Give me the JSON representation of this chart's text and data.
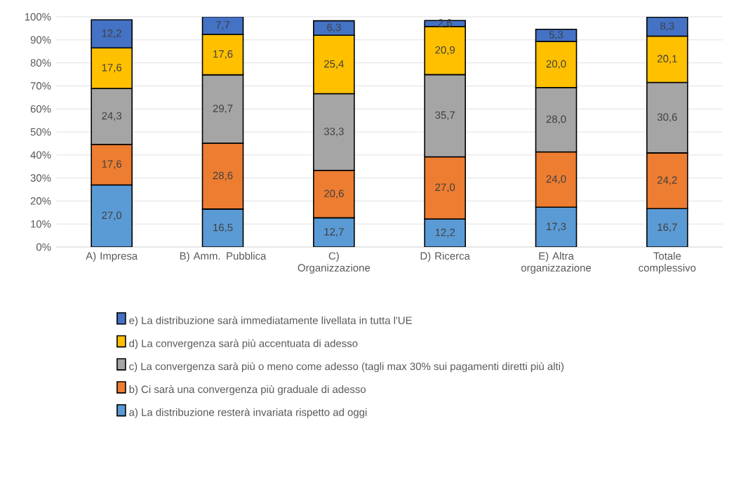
{
  "chart_data": {
    "type": "bar",
    "stacked": true,
    "categories": [
      "A) Impresa",
      "B) Amm. Pubblica",
      "C) Organizzazione",
      "D) Ricerca",
      "E) Altra organizzazione",
      "Totale complessivo"
    ],
    "series": [
      {
        "name": "a) La distribuzione resterà invariata rispetto ad oggi",
        "color": "#5b9bd5",
        "values": [
          27.0,
          16.5,
          12.7,
          12.2,
          17.3,
          16.7
        ],
        "value_labels": [
          "27,0",
          "16,5",
          "12,7",
          "12,2",
          "17,3",
          "16,7"
        ]
      },
      {
        "name": "b) Ci sarà una convergenza più graduale di adesso",
        "color": "#ed7d31",
        "values": [
          17.6,
          28.6,
          20.6,
          27.0,
          24.0,
          24.2
        ],
        "value_labels": [
          "17,6",
          "28,6",
          "20,6",
          "27,0",
          "24,0",
          "24,2"
        ]
      },
      {
        "name": "c) La convergenza sarà più o meno come adesso (tagli max 30% sui pagamenti diretti più alti)",
        "color": "#a5a5a5",
        "values": [
          24.3,
          29.7,
          33.3,
          35.7,
          28.0,
          30.6
        ],
        "value_labels": [
          "24,3",
          "29,7",
          "33,3",
          "35,7",
          "28,0",
          "30,6"
        ]
      },
      {
        "name": "d) La convergenza sarà più accentuata di adesso",
        "color": "#ffc000",
        "values": [
          17.6,
          17.6,
          25.4,
          20.9,
          20.0,
          20.1
        ],
        "value_labels": [
          "17,6",
          "17,6",
          "25,4",
          "20,9",
          "20,0",
          "20,1"
        ]
      },
      {
        "name": "e) La distribuzione sarà immediatamente livellata in tutta l'UE",
        "color": "#4472c4",
        "values": [
          12.2,
          7.7,
          6.3,
          2.6,
          5.3,
          8.3
        ],
        "value_labels": [
          "12,2",
          "7,7",
          "6,3",
          "2,6",
          "5,3",
          "8,3"
        ]
      }
    ],
    "ylim": [
      0,
      100
    ],
    "yticks": [
      {
        "value": 0,
        "label": "0%"
      },
      {
        "value": 10,
        "label": "10%"
      },
      {
        "value": 20,
        "label": "20%"
      },
      {
        "value": 30,
        "label": "30%"
      },
      {
        "value": 40,
        "label": "40%"
      },
      {
        "value": 50,
        "label": "50%"
      },
      {
        "value": 60,
        "label": "60%"
      },
      {
        "value": 70,
        "label": "70%"
      },
      {
        "value": 80,
        "label": "80%"
      },
      {
        "value": 90,
        "label": "90%"
      },
      {
        "value": 100,
        "label": "100%"
      }
    ],
    "grid": "y",
    "legend": "bottom"
  }
}
